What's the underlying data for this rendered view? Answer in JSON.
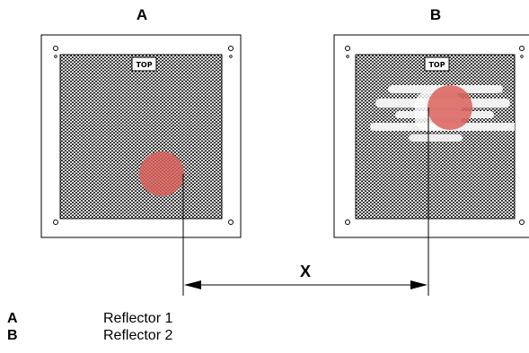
{
  "panels": [
    {
      "title": "A",
      "top_label": "TOP"
    },
    {
      "title": "B",
      "top_label": "TOP"
    }
  ],
  "dimension": {
    "label": "X"
  },
  "legend": [
    {
      "key": "A",
      "text": "Reflector 1"
    },
    {
      "key": "B",
      "text": "Reflector 2"
    }
  ],
  "colors": {
    "outline": "#000000",
    "mesh_background": "#111111",
    "hole_fill": "#ffffff",
    "target_spot": "#d9605a",
    "background": "#ffffff"
  }
}
